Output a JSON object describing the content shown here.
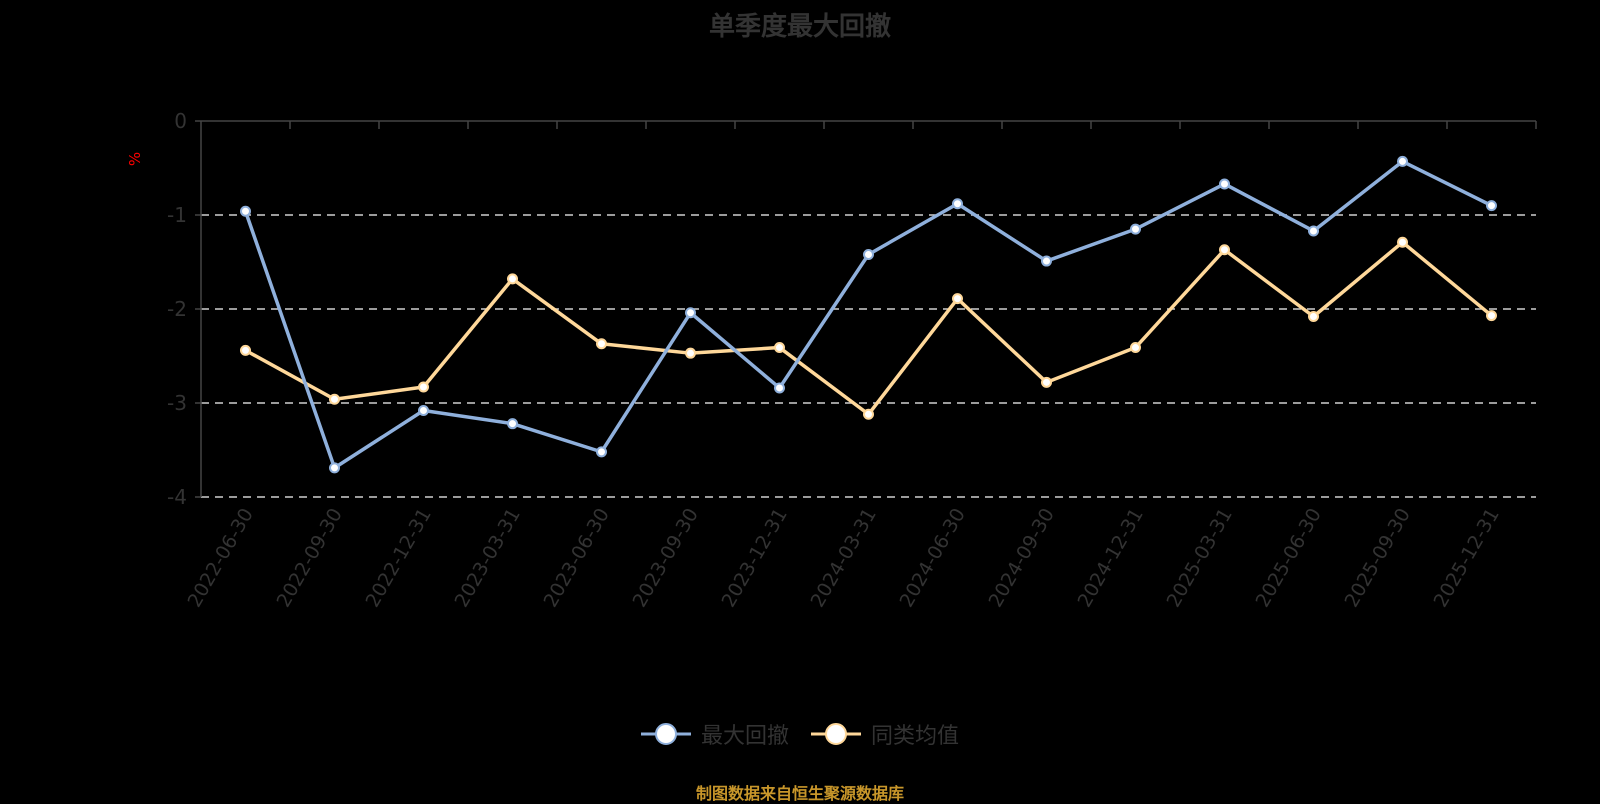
{
  "title": "单季度最大回撤",
  "unit_label": "%",
  "source_note": "制图数据来自恒生聚源数据库",
  "colors": {
    "background": "#000000",
    "series_drawdown": "#8fb0dc",
    "series_peer_avg": "#ffd89a",
    "axis": "#444444",
    "grid": "#d0d0d0",
    "text": "#333333",
    "unit": "#ff0000",
    "source": "#c8962a"
  },
  "legend": [
    {
      "name": "最大回撤",
      "color": "#8fb0dc"
    },
    {
      "name": "同类均值",
      "color": "#ffd89a"
    }
  ],
  "chart_data": {
    "type": "line",
    "title": "单季度最大回撤",
    "xlabel": "",
    "ylabel": "%",
    "ylim": [
      -4,
      0
    ],
    "yticks": [
      0,
      -1,
      -2,
      -3,
      -4
    ],
    "grid": true,
    "legend_position": "bottom",
    "categories": [
      "2022-06-30",
      "2022-09-30",
      "2022-12-31",
      "2023-03-31",
      "2023-06-30",
      "2023-09-30",
      "2023-12-31",
      "2024-03-31",
      "2024-06-30",
      "2024-09-30",
      "2024-12-31",
      "2025-03-31",
      "2025-06-30",
      "2025-09-30",
      "2025-12-31"
    ],
    "series": [
      {
        "name": "最大回撤",
        "values": [
          -0.96,
          -3.69,
          -3.08,
          -3.22,
          -3.52,
          -2.04,
          -2.84,
          -1.42,
          -0.88,
          -1.49,
          -1.15,
          -0.67,
          -1.17,
          -0.43,
          -0.9
        ]
      },
      {
        "name": "同类均值",
        "values": [
          -2.44,
          -2.96,
          -2.83,
          -1.68,
          -2.37,
          -2.47,
          -2.41,
          -3.12,
          -1.89,
          -2.78,
          -2.41,
          -1.37,
          -2.08,
          -1.29,
          -2.07
        ]
      }
    ]
  }
}
